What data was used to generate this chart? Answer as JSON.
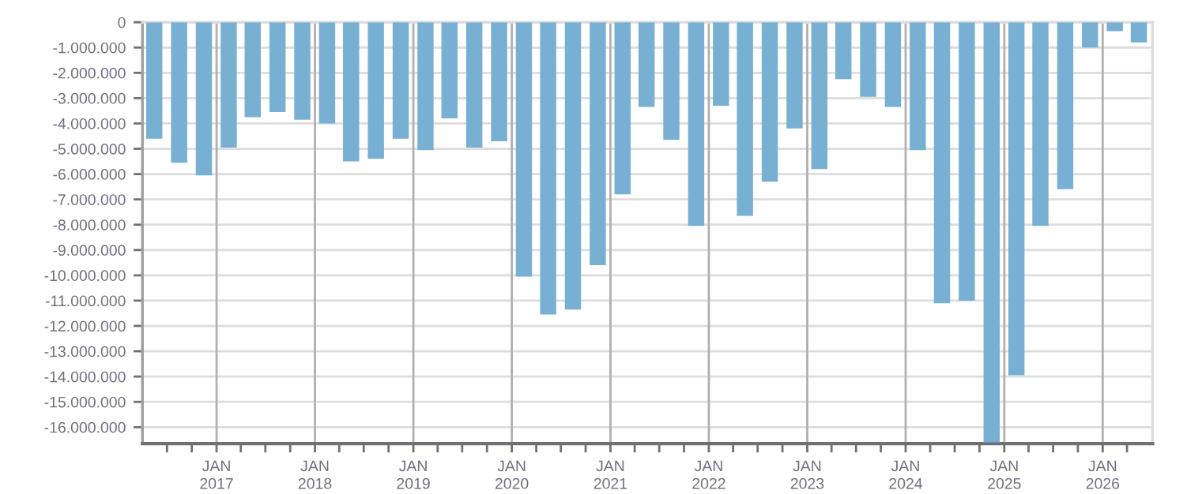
{
  "chart_data": {
    "type": "bar",
    "color": "#78b0d3",
    "x": [
      "2016-05-15",
      "2016-08-15",
      "2016-11-15",
      "2017-02-15",
      "2017-05-15",
      "2017-08-15",
      "2017-11-15",
      "2018-02-15",
      "2018-05-15",
      "2018-08-15",
      "2018-11-15",
      "2019-02-15",
      "2019-05-15",
      "2019-08-15",
      "2019-11-15",
      "2020-02-15",
      "2020-05-15",
      "2020-08-15",
      "2020-11-15",
      "2021-02-15",
      "2021-05-15",
      "2021-08-15",
      "2021-11-15",
      "2022-02-15",
      "2022-05-15",
      "2022-08-15",
      "2022-11-15",
      "2023-02-15",
      "2023-05-15",
      "2023-08-15",
      "2023-11-15",
      "2024-02-15",
      "2024-05-15",
      "2024-08-15",
      "2024-11-15",
      "2025-02-15",
      "2025-05-15",
      "2025-08-15",
      "2025-11-15",
      "2026-02-15",
      "2026-05-15"
    ],
    "values": [
      -4600000,
      -5550000,
      -6050000,
      -4950000,
      -3750000,
      -3550000,
      -3850000,
      -4000000,
      -5500000,
      -5400000,
      -4600000,
      -5050000,
      -3800000,
      -4950000,
      -4700000,
      -10050000,
      -11550000,
      -11350000,
      -9600000,
      -6800000,
      -3350000,
      -4650000,
      -8050000,
      -3300000,
      -7650000,
      -6300000,
      -4200000,
      -5800000,
      -2250000,
      -2950000,
      -3350000,
      -5050000,
      -11100000,
      -11000000,
      -16600000,
      -13950000,
      -8050000,
      -6600000,
      -1000000,
      -350000,
      -800000
    ],
    "ylim": [
      -16650000,
      0
    ],
    "yticks": [
      {
        "value": -16000000,
        "label": "-16.000.000"
      },
      {
        "value": -15000000,
        "label": "-15.000.000"
      },
      {
        "value": -14000000,
        "label": "-14.000.000"
      },
      {
        "value": -13000000,
        "label": "-13.000.000"
      },
      {
        "value": -12000000,
        "label": "-12.000.000"
      },
      {
        "value": -11000000,
        "label": "-11.000.000"
      },
      {
        "value": -10000000,
        "label": "-10.000.000"
      },
      {
        "value": -9000000,
        "label": "-9.000.000"
      },
      {
        "value": -8000000,
        "label": "-8.000.000"
      },
      {
        "value": -7000000,
        "label": "-7.000.000"
      },
      {
        "value": -6000000,
        "label": "-6.000.000"
      },
      {
        "value": -5000000,
        "label": "-5.000.000"
      },
      {
        "value": -4000000,
        "label": "-4.000.000"
      },
      {
        "value": -3000000,
        "label": "-3.000.000"
      },
      {
        "value": -2000000,
        "label": "-2.000.000"
      },
      {
        "value": -1000000,
        "label": "-1.000.000"
      },
      0
    ],
    "xlim": [
      "2016-04-01",
      "2026-07-05"
    ],
    "xticks": [
      {
        "value": "2016-07-01",
        "label": null
      },
      {
        "value": "2016-10-01",
        "label": null
      },
      {
        "value": "2017-01-01",
        "label": "JAN\n2017"
      },
      {
        "value": "2017-04-01",
        "label": null
      },
      {
        "value": "2017-07-01",
        "label": null
      },
      {
        "value": "2017-10-01",
        "label": null
      },
      {
        "value": "2018-01-01",
        "label": "JAN\n2018"
      },
      {
        "value": "2018-04-01",
        "label": null
      },
      {
        "value": "2018-07-01",
        "label": null
      },
      {
        "value": "2018-10-01",
        "label": null
      },
      {
        "value": "2019-01-01",
        "label": "JAN\n2019"
      },
      {
        "value": "2019-04-01",
        "label": null
      },
      {
        "value": "2019-07-01",
        "label": null
      },
      {
        "value": "2019-10-01",
        "label": null
      },
      {
        "value": "2020-01-01",
        "label": "JAN\n2020"
      },
      {
        "value": "2020-04-01",
        "label": null
      },
      {
        "value": "2020-07-01",
        "label": null
      },
      {
        "value": "2020-10-01",
        "label": null
      },
      {
        "value": "2021-01-01",
        "label": "JAN\n2021"
      },
      {
        "value": "2021-04-01",
        "label": null
      },
      {
        "value": "2021-07-01",
        "label": null
      },
      {
        "value": "2021-10-01",
        "label": null
      },
      {
        "value": "2022-01-01",
        "label": "JAN\n2022"
      },
      {
        "value": "2022-04-01",
        "label": null
      },
      {
        "value": "2022-07-01",
        "label": null
      },
      {
        "value": "2022-10-01",
        "label": null
      },
      {
        "value": "2023-01-01",
        "label": "JAN\n2023"
      },
      {
        "value": "2023-04-01",
        "label": null
      },
      {
        "value": "2023-07-01",
        "label": null
      },
      {
        "value": "2023-10-01",
        "label": null
      },
      {
        "value": "2024-01-01",
        "label": "JAN\n2024"
      },
      {
        "value": "2024-04-01",
        "label": null
      },
      {
        "value": "2024-07-01",
        "label": null
      },
      {
        "value": "2024-10-01",
        "label": null
      },
      {
        "value": "2025-01-01",
        "label": "JAN\n2025"
      },
      {
        "value": "2025-04-01",
        "label": null
      },
      {
        "value": "2025-07-01",
        "label": null
      },
      {
        "value": "2025-10-01",
        "label": null
      },
      {
        "value": "2026-01-01",
        "label": "JAN\n2026"
      },
      {
        "value": "2026-04-01",
        "label": null
      }
    ],
    "grid": true,
    "legend": false
  }
}
